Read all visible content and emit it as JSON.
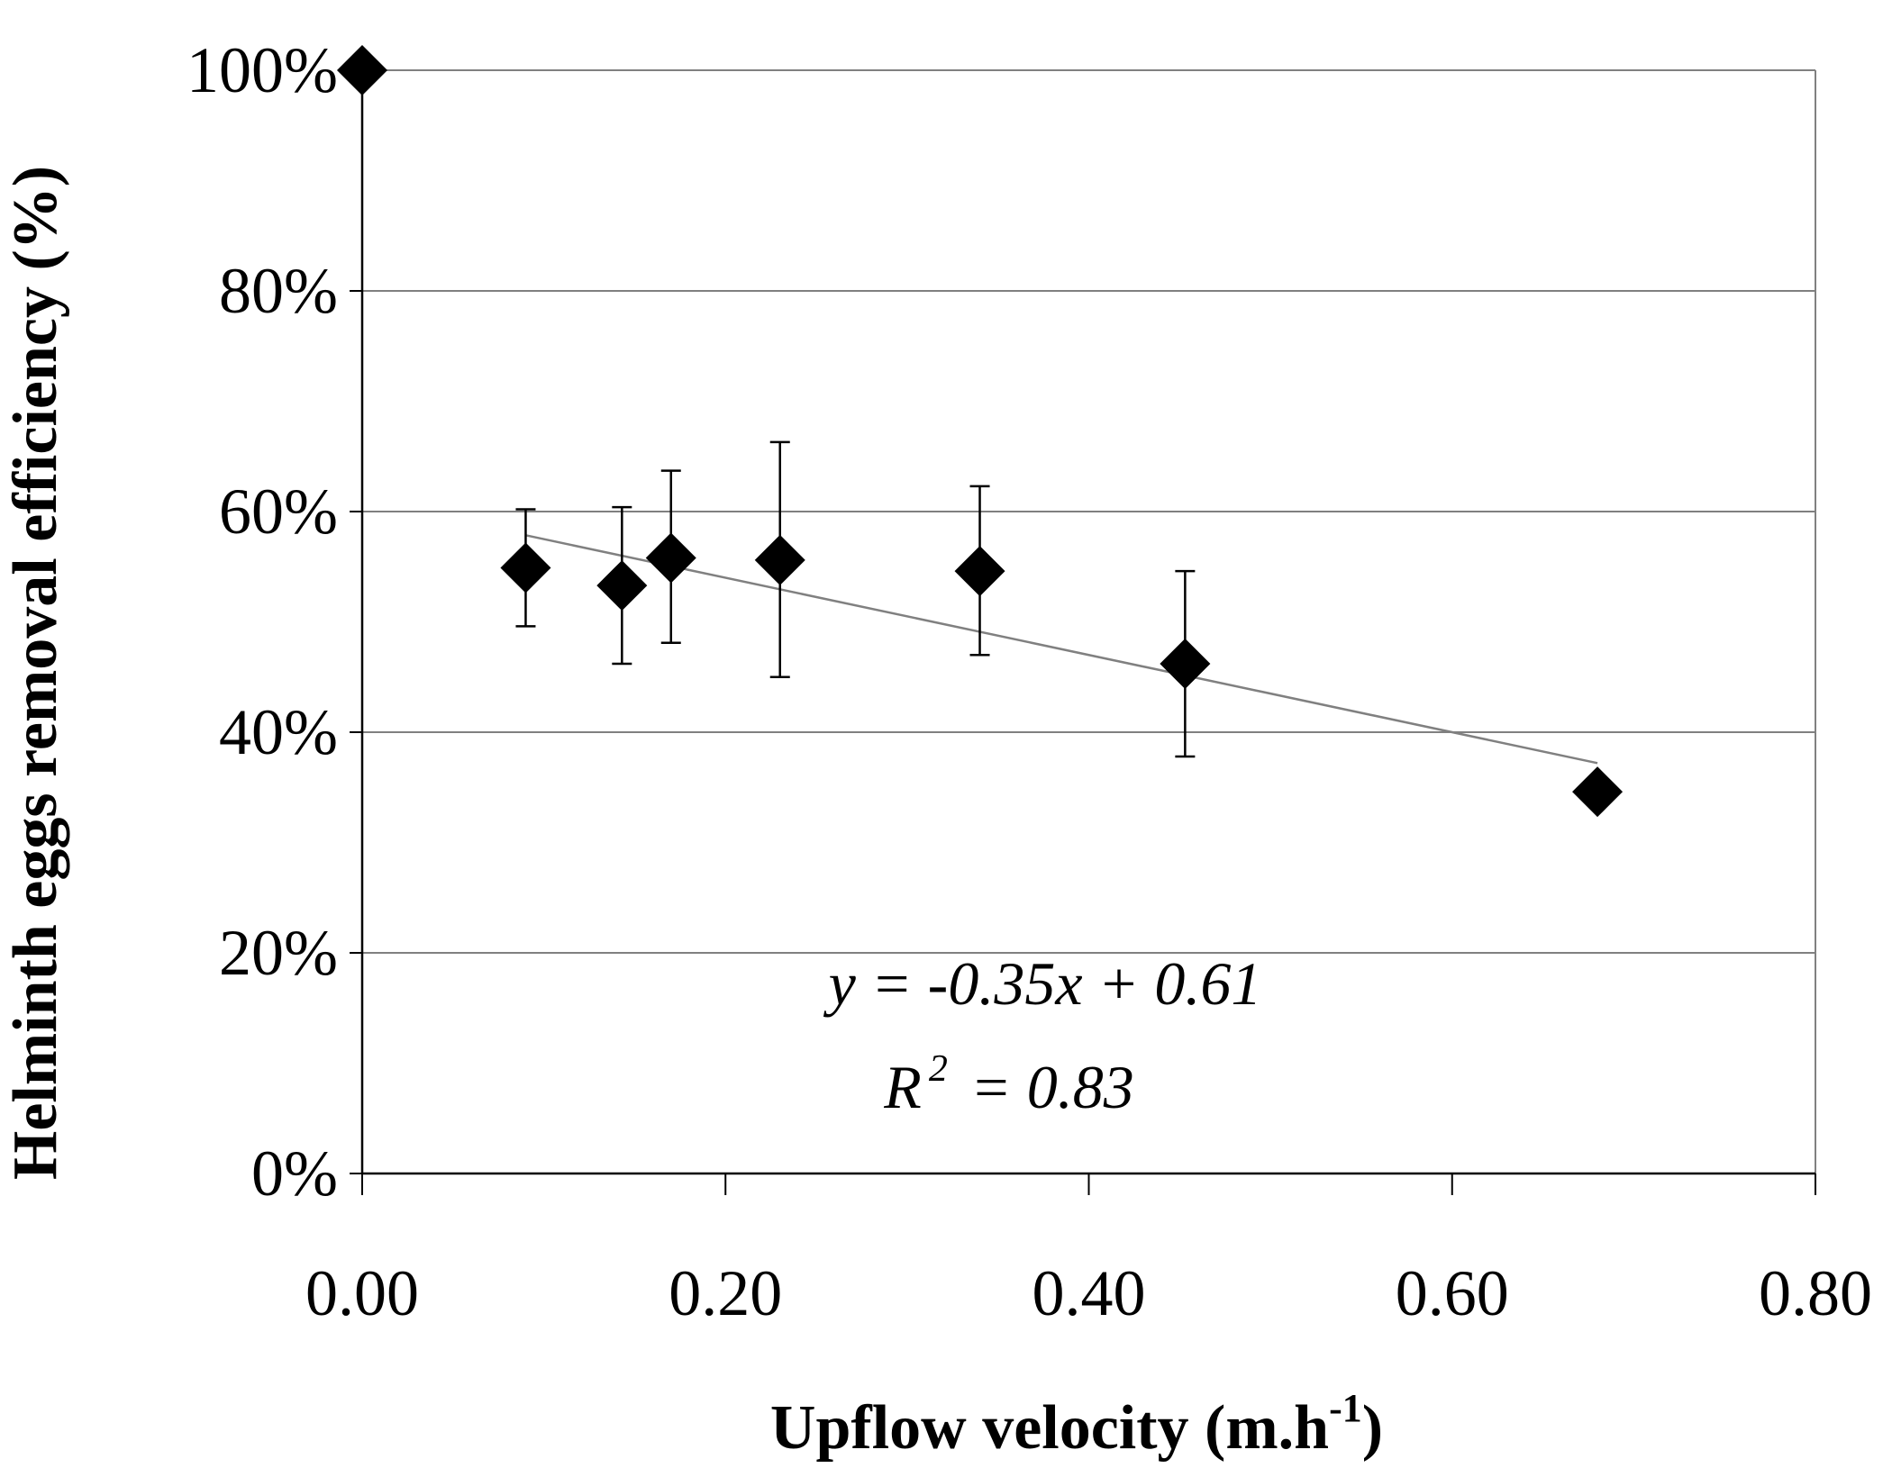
{
  "chart_data": {
    "type": "scatter",
    "title": "",
    "xlabel": {
      "main": "Upflow velocity (m.h",
      "sup": "-1",
      "end": ")"
    },
    "ylabel": "Helminth eggs removal efficiency (%)",
    "xlim": [
      0,
      0.8
    ],
    "ylim": [
      0,
      1.0
    ],
    "x_ticks": [
      0,
      0.2,
      0.4,
      0.6,
      0.8
    ],
    "x_tick_labels": [
      "0.00",
      "0.20",
      "0.40",
      "0.60",
      "0.80"
    ],
    "y_ticks": [
      0,
      0.2,
      0.4,
      0.6,
      0.8,
      1.0
    ],
    "y_tick_labels": [
      "0%",
      "20%",
      "40%",
      "60%",
      "80%",
      "100%"
    ],
    "grid": "horizontal",
    "series": [
      {
        "name": "Helminth eggs removal",
        "marker": "diamond",
        "color": "#000000",
        "points": [
          {
            "x": 0.0,
            "y": 1.0,
            "err_low": null,
            "err_high": null
          },
          {
            "x": 0.09,
            "y": 0.549,
            "err_low": 0.496,
            "err_high": 0.602
          },
          {
            "x": 0.143,
            "y": 0.533,
            "err_low": 0.462,
            "err_high": 0.604
          },
          {
            "x": 0.17,
            "y": 0.558,
            "err_low": 0.481,
            "err_high": 0.637
          },
          {
            "x": 0.23,
            "y": 0.556,
            "err_low": 0.45,
            "err_high": 0.663
          },
          {
            "x": 0.34,
            "y": 0.546,
            "err_low": 0.47,
            "err_high": 0.623
          },
          {
            "x": 0.453,
            "y": 0.462,
            "err_low": 0.378,
            "err_high": 0.546
          },
          {
            "x": 0.68,
            "y": 0.346,
            "err_low": null,
            "err_high": null
          }
        ]
      }
    ],
    "trendline": {
      "type": "linear",
      "slope": -0.35,
      "intercept": 0.61,
      "x_range": [
        0.09,
        0.68
      ],
      "color": "#808080"
    },
    "annotation": {
      "equation": "y = -0.35x + 0.61",
      "r2_prefix": "R",
      "r2_sup": "2",
      "r2_value": " = 0.83"
    }
  }
}
